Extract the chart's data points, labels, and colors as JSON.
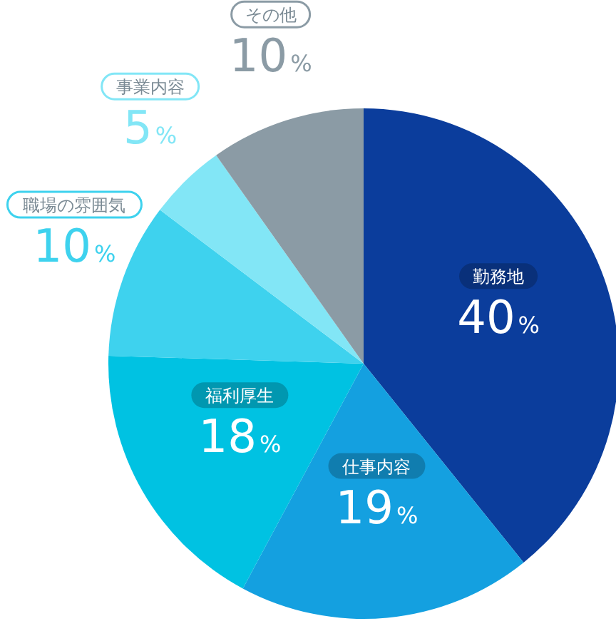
{
  "chart_data": {
    "type": "pie",
    "categories": [
      "勤務地",
      "仕事内容",
      "福利厚生",
      "職場の雰囲気",
      "事業内容",
      "その他"
    ],
    "values": [
      40,
      19,
      18,
      10,
      5,
      10
    ],
    "value_labels": [
      "40%",
      "19%",
      "18%",
      "10%",
      "5%",
      "10%"
    ],
    "colors": [
      "#0b3d9c",
      "#14a0e0",
      "#00c2e2",
      "#3ed2ee",
      "#82e6f6",
      "#8b9ba5"
    ]
  }
}
